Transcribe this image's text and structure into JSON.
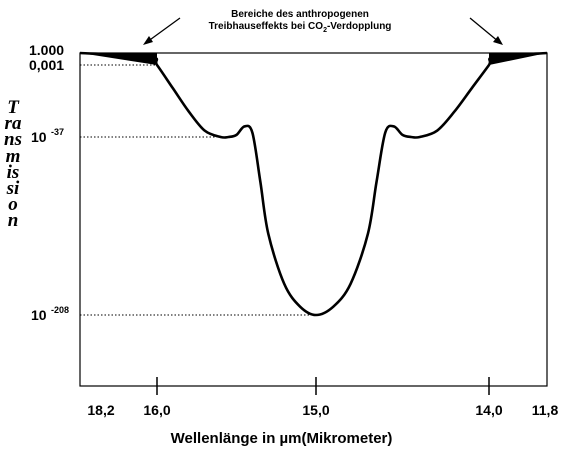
{
  "annotation": {
    "line1": "Bereiche des anthropogenen",
    "line2_pre": "Treibhauseffekts bei CO",
    "line2_sub": "2",
    "line2_post": "-Verdopplung"
  },
  "chart_data": {
    "type": "line",
    "title": "",
    "xlabel": "Wellenlänge in µm(Mikrometer)",
    "ylabel": "Transmission",
    "x_ticks": [
      "18,2",
      "16,0",
      "15,0",
      "14,0",
      "11,8"
    ],
    "y_ticks": [
      {
        "base": "1.000",
        "exp": ""
      },
      {
        "base": "0,001",
        "exp": ""
      },
      {
        "base": "10",
        "exp": "-37"
      },
      {
        "base": "10",
        "exp": "-208"
      }
    ],
    "series": [
      {
        "values_description": "log10 transmission vs wavelength (µm)",
        "x": [
          18.2,
          16.2,
          16.0,
          15.9,
          15.8,
          15.7,
          15.6,
          15.55,
          15.5,
          15.45,
          15.4,
          15.35,
          15.3,
          15.2,
          15.1,
          15.0,
          14.9,
          14.8,
          14.7,
          14.65,
          14.6,
          14.55,
          14.5,
          14.45,
          14.4,
          14.3,
          14.2,
          14.1,
          14.0,
          13.8,
          11.8
        ],
        "y": [
          0,
          -1,
          -3,
          -14,
          -25,
          -34,
          -37,
          -37,
          -36,
          -32,
          -35,
          -80,
          -130,
          -178,
          -200,
          -208,
          -200,
          -178,
          -130,
          -80,
          -35,
          -32,
          -36,
          -37,
          -37,
          -34,
          -25,
          -14,
          -3,
          -1,
          0
        ]
      }
    ]
  }
}
